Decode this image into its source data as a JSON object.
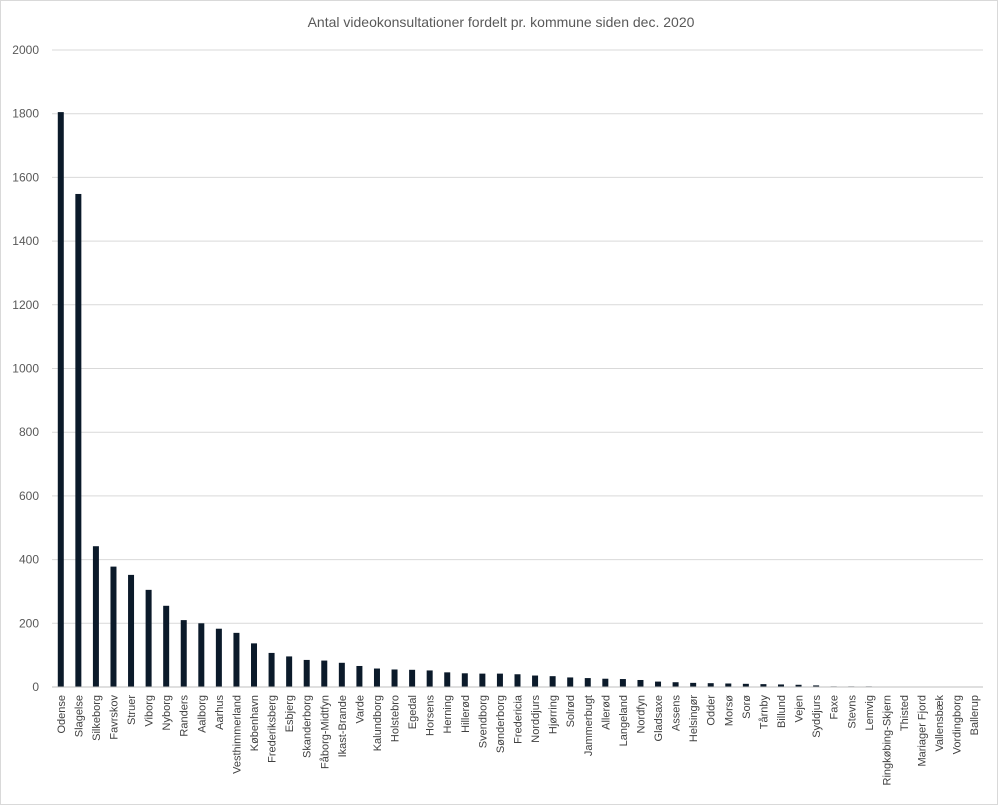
{
  "chart_data": {
    "type": "bar",
    "title": "Antal videokonsultationer fordelt pr. kommune siden dec. 2020",
    "xlabel": "",
    "ylabel": "",
    "ylim": [
      0,
      2000
    ],
    "yticks": [
      0,
      200,
      400,
      600,
      800,
      1000,
      1200,
      1400,
      1600,
      1800,
      2000
    ],
    "grid": true,
    "legend": "none",
    "bar_color": "#0b1a2a",
    "categories": [
      "Odense",
      "Slagelse",
      "Silkeborg",
      "Favrskov",
      "Struer",
      "Viborg",
      "Nyborg",
      "Randers",
      "Aalborg",
      "Aarhus",
      "Vesthimmerland",
      "København",
      "Frederiksberg",
      "Esbjerg",
      "Skanderborg",
      "Fåborg-Midtfyn",
      "Ikast-Brande",
      "Varde",
      "Kalundborg",
      "Holstebro",
      "Egedal",
      "Horsens",
      "Herning",
      "Hillerød",
      "Svendborg",
      "Sønderborg",
      "Fredericia",
      "Norddjurs",
      "Hjørring",
      "Solrød",
      "Jammerbugt",
      "Allerød",
      "Langeland",
      "Nordfyn",
      "Gladsaxe",
      "Assens",
      "Helsingør",
      "Odder",
      "Morsø",
      "Sorø",
      "Tårnby",
      "Billund",
      "Vejen",
      "Syddjurs",
      "Faxe",
      "Stevns",
      "Lemvig",
      "Ringkøbing-Skjern",
      "Thisted",
      "Mariager Fjord",
      "Vallensbæk",
      "Vordingborg",
      "Ballerup"
    ],
    "values": [
      1805,
      1548,
      442,
      378,
      352,
      305,
      255,
      210,
      200,
      183,
      170,
      137,
      107,
      96,
      85,
      83,
      76,
      66,
      58,
      55,
      54,
      52,
      46,
      43,
      42,
      42,
      40,
      36,
      34,
      30,
      28,
      26,
      25,
      22,
      17,
      15,
      13,
      12,
      11,
      10,
      9,
      8,
      7,
      5,
      2,
      2,
      2,
      1,
      1,
      1,
      1,
      1,
      1
    ]
  }
}
